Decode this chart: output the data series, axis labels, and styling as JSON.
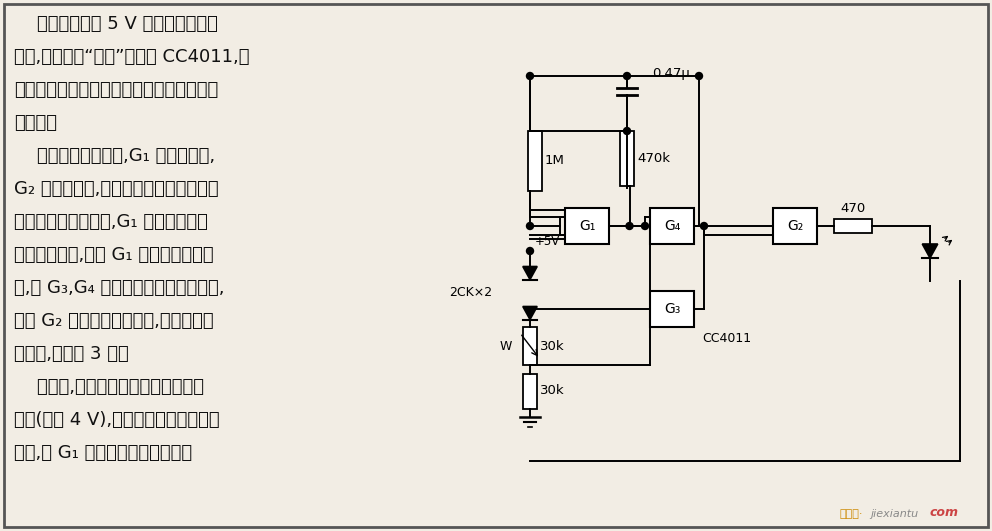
{
  "bg_color": "#f2ede4",
  "border_color": "#333333",
  "text_color": "#111111",
  "left_text_lines": [
    "    本电路是一个 5 V 电源的低压报警",
    "电路,仅用一块“与非”门电路 CC4011,并",
    "用发光二极管指示。电路简单、工作可靠、",
    "功耗低。",
    "    电源电压足够高时,G₁ 输出低电平,",
    "G₂ 输出高电平,点亮发光二极管。当电源",
    "电压下降到设定值时,G₁ 的一个输入端",
    "变成了低电压,所以 G₁ 输出高电平。于",
    "是,由 G₃,G₄ 组成的振荡器产生的脉冲,",
    "通过 G₂ 使发光二极管闪光,频率为振荡",
    "器频率,约每秒 3 次。",
    "    调节时,只需要把电源加上允许的最",
    "低值(例如 4 V),然后改变电位器动臂的",
    "位置,使 G₁ 的输出刚好翻转即可。"
  ],
  "watermark": "jiexiantu",
  "watermark2": "com"
}
